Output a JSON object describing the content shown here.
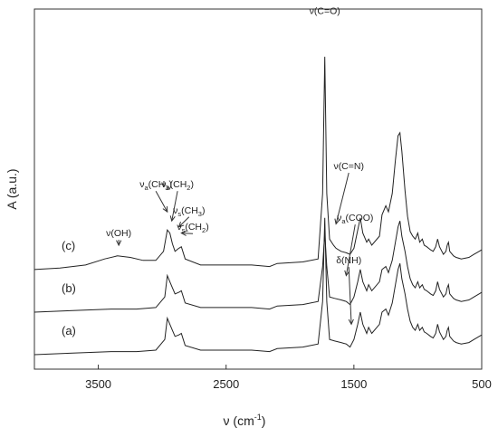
{
  "chart_data": {
    "type": "line",
    "title": "",
    "xlabel": "ν (cm",
    "xlabel_sup": "-1",
    "xlabel_close": ")",
    "ylabel": "A (a.u.)",
    "xlim": [
      4000,
      500
    ],
    "x_reversed": true,
    "y_ticks_shown": false,
    "grid": false,
    "legend": "none",
    "xticks": [
      3500,
      2500,
      1500,
      500
    ],
    "xtick_labels": [
      "3500",
      "2500",
      "1500",
      "500"
    ],
    "series": [
      {
        "label": "(a)",
        "offset": 0.0,
        "points": [
          [
            4000,
            0.1
          ],
          [
            3700,
            0.11
          ],
          [
            3400,
            0.12
          ],
          [
            3200,
            0.12
          ],
          [
            3050,
            0.13
          ],
          [
            2980,
            0.2
          ],
          [
            2960,
            0.34
          ],
          [
            2940,
            0.3
          ],
          [
            2920,
            0.26
          ],
          [
            2900,
            0.22
          ],
          [
            2870,
            0.23
          ],
          [
            2850,
            0.24
          ],
          [
            2820,
            0.16
          ],
          [
            2700,
            0.13
          ],
          [
            2500,
            0.13
          ],
          [
            2300,
            0.13
          ],
          [
            2160,
            0.12
          ],
          [
            2100,
            0.14
          ],
          [
            1900,
            0.15
          ],
          [
            1780,
            0.17
          ],
          [
            1745,
            0.45
          ],
          [
            1728,
            1.0
          ],
          [
            1712,
            0.45
          ],
          [
            1690,
            0.2
          ],
          [
            1650,
            0.19
          ],
          [
            1600,
            0.18
          ],
          [
            1560,
            0.17
          ],
          [
            1530,
            0.15
          ],
          [
            1500,
            0.2
          ],
          [
            1470,
            0.3
          ],
          [
            1450,
            0.38
          ],
          [
            1430,
            0.3
          ],
          [
            1400,
            0.24
          ],
          [
            1385,
            0.28
          ],
          [
            1360,
            0.24
          ],
          [
            1300,
            0.3
          ],
          [
            1280,
            0.38
          ],
          [
            1250,
            0.4
          ],
          [
            1230,
            0.36
          ],
          [
            1200,
            0.44
          ],
          [
            1175,
            0.56
          ],
          [
            1155,
            0.66
          ],
          [
            1140,
            0.7
          ],
          [
            1125,
            0.6
          ],
          [
            1100,
            0.5
          ],
          [
            1080,
            0.4
          ],
          [
            1060,
            0.32
          ],
          [
            1040,
            0.28
          ],
          [
            1020,
            0.26
          ],
          [
            1000,
            0.3
          ],
          [
            985,
            0.26
          ],
          [
            965,
            0.28
          ],
          [
            950,
            0.25
          ],
          [
            930,
            0.24
          ],
          [
            900,
            0.22
          ],
          [
            880,
            0.21
          ],
          [
            860,
            0.24
          ],
          [
            845,
            0.3
          ],
          [
            830,
            0.25
          ],
          [
            800,
            0.2
          ],
          [
            780,
            0.22
          ],
          [
            770,
            0.26
          ],
          [
            760,
            0.28
          ],
          [
            750,
            0.22
          ],
          [
            720,
            0.19
          ],
          [
            700,
            0.18
          ],
          [
            660,
            0.17
          ],
          [
            600,
            0.18
          ],
          [
            560,
            0.2
          ],
          [
            520,
            0.22
          ],
          [
            500,
            0.23
          ]
        ]
      },
      {
        "label": "(b)",
        "offset": 0.28,
        "points": [
          [
            4000,
            0.1
          ],
          [
            3700,
            0.11
          ],
          [
            3400,
            0.12
          ],
          [
            3200,
            0.12
          ],
          [
            3050,
            0.13
          ],
          [
            2980,
            0.2
          ],
          [
            2960,
            0.34
          ],
          [
            2940,
            0.3
          ],
          [
            2920,
            0.26
          ],
          [
            2900,
            0.22
          ],
          [
            2870,
            0.23
          ],
          [
            2850,
            0.24
          ],
          [
            2820,
            0.16
          ],
          [
            2700,
            0.13
          ],
          [
            2500,
            0.13
          ],
          [
            2300,
            0.13
          ],
          [
            2160,
            0.12
          ],
          [
            2100,
            0.14
          ],
          [
            1900,
            0.15
          ],
          [
            1780,
            0.17
          ],
          [
            1745,
            0.4
          ],
          [
            1728,
            0.62
          ],
          [
            1712,
            0.4
          ],
          [
            1690,
            0.2
          ],
          [
            1650,
            0.19
          ],
          [
            1600,
            0.18
          ],
          [
            1560,
            0.17
          ],
          [
            1530,
            0.15
          ],
          [
            1500,
            0.2
          ],
          [
            1470,
            0.3
          ],
          [
            1450,
            0.38
          ],
          [
            1430,
            0.3
          ],
          [
            1400,
            0.24
          ],
          [
            1385,
            0.28
          ],
          [
            1360,
            0.24
          ],
          [
            1300,
            0.3
          ],
          [
            1280,
            0.38
          ],
          [
            1250,
            0.4
          ],
          [
            1230,
            0.36
          ],
          [
            1200,
            0.44
          ],
          [
            1175,
            0.56
          ],
          [
            1155,
            0.66
          ],
          [
            1140,
            0.7
          ],
          [
            1125,
            0.6
          ],
          [
            1100,
            0.5
          ],
          [
            1080,
            0.4
          ],
          [
            1060,
            0.32
          ],
          [
            1040,
            0.28
          ],
          [
            1020,
            0.26
          ],
          [
            1000,
            0.3
          ],
          [
            985,
            0.26
          ],
          [
            965,
            0.28
          ],
          [
            950,
            0.25
          ],
          [
            930,
            0.24
          ],
          [
            900,
            0.22
          ],
          [
            880,
            0.21
          ],
          [
            860,
            0.24
          ],
          [
            845,
            0.3
          ],
          [
            830,
            0.25
          ],
          [
            800,
            0.2
          ],
          [
            780,
            0.22
          ],
          [
            770,
            0.26
          ],
          [
            760,
            0.28
          ],
          [
            750,
            0.22
          ],
          [
            720,
            0.19
          ],
          [
            700,
            0.18
          ],
          [
            660,
            0.17
          ],
          [
            600,
            0.18
          ],
          [
            560,
            0.2
          ],
          [
            520,
            0.22
          ],
          [
            500,
            0.23
          ]
        ]
      },
      {
        "label": "(c)",
        "offset": 0.56,
        "points": [
          [
            4000,
            0.1
          ],
          [
            3800,
            0.11
          ],
          [
            3600,
            0.13
          ],
          [
            3450,
            0.17
          ],
          [
            3350,
            0.19
          ],
          [
            3250,
            0.18
          ],
          [
            3150,
            0.16
          ],
          [
            3050,
            0.16
          ],
          [
            2990,
            0.22
          ],
          [
            2960,
            0.36
          ],
          [
            2940,
            0.34
          ],
          [
            2920,
            0.27
          ],
          [
            2900,
            0.22
          ],
          [
            2870,
            0.24
          ],
          [
            2850,
            0.25
          ],
          [
            2820,
            0.17
          ],
          [
            2700,
            0.13
          ],
          [
            2500,
            0.13
          ],
          [
            2300,
            0.13
          ],
          [
            2160,
            0.12
          ],
          [
            2100,
            0.14
          ],
          [
            1900,
            0.15
          ],
          [
            1780,
            0.17
          ],
          [
            1745,
            0.6
          ],
          [
            1728,
            1.5
          ],
          [
            1712,
            0.6
          ],
          [
            1690,
            0.3
          ],
          [
            1660,
            0.26
          ],
          [
            1640,
            0.24
          ],
          [
            1600,
            0.22
          ],
          [
            1560,
            0.21
          ],
          [
            1530,
            0.2
          ],
          [
            1500,
            0.24
          ],
          [
            1470,
            0.36
          ],
          [
            1450,
            0.44
          ],
          [
            1430,
            0.34
          ],
          [
            1400,
            0.28
          ],
          [
            1385,
            0.3
          ],
          [
            1360,
            0.26
          ],
          [
            1300,
            0.32
          ],
          [
            1280,
            0.46
          ],
          [
            1250,
            0.52
          ],
          [
            1230,
            0.48
          ],
          [
            1200,
            0.6
          ],
          [
            1175,
            0.82
          ],
          [
            1155,
            0.98
          ],
          [
            1140,
            1.0
          ],
          [
            1125,
            0.88
          ],
          [
            1100,
            0.62
          ],
          [
            1080,
            0.45
          ],
          [
            1060,
            0.35
          ],
          [
            1040,
            0.32
          ],
          [
            1020,
            0.3
          ],
          [
            1000,
            0.34
          ],
          [
            985,
            0.28
          ],
          [
            965,
            0.3
          ],
          [
            950,
            0.26
          ],
          [
            930,
            0.25
          ],
          [
            900,
            0.23
          ],
          [
            880,
            0.22
          ],
          [
            860,
            0.25
          ],
          [
            845,
            0.3
          ],
          [
            830,
            0.25
          ],
          [
            800,
            0.2
          ],
          [
            780,
            0.22
          ],
          [
            770,
            0.26
          ],
          [
            760,
            0.28
          ],
          [
            750,
            0.22
          ],
          [
            720,
            0.19
          ],
          [
            700,
            0.18
          ],
          [
            660,
            0.17
          ],
          [
            600,
            0.18
          ],
          [
            560,
            0.2
          ],
          [
            520,
            0.22
          ],
          [
            500,
            0.23
          ]
        ]
      }
    ],
    "annotations": [
      {
        "id": "voh",
        "main": "ν(OH)",
        "sub": "",
        "tail": "",
        "x_cm": 3340,
        "y": 0.78,
        "arrow_to_x": 3340,
        "arrow_to_y": 0.72
      },
      {
        "id": "vach3",
        "main": "ν",
        "sub": "a",
        "tail": "(CH",
        "sub2": "3",
        "close": ")",
        "x_cm": 3050,
        "y": 1.1,
        "arrow_to_x": 2960,
        "arrow_to_y": 0.94
      },
      {
        "id": "vach2",
        "main": "ν",
        "sub": "a",
        "tail": "(CH",
        "sub2": "2",
        "close": ")",
        "x_cm": 2880,
        "y": 1.1,
        "arrow_to_x": 2925,
        "arrow_to_y": 0.88
      },
      {
        "id": "vsch3",
        "main": "ν",
        "sub": "s",
        "tail": "(CH",
        "sub2": "3",
        "close": ")",
        "x_cm": 2790,
        "y": 0.93,
        "arrow_to_x": 2870,
        "arrow_to_y": 0.84
      },
      {
        "id": "vsch2",
        "main": "ν",
        "sub": "s",
        "tail": "(CH",
        "sub2": "2",
        "close": ")",
        "x_cm": 2760,
        "y": 0.82,
        "arrow_to_x": 2850,
        "arrow_to_y": 0.8
      },
      {
        "id": "vco",
        "main": "ν(C=O)",
        "sub": "",
        "tail": "",
        "x_cm": 1728,
        "y": 2.24,
        "arrow_to_x": null,
        "arrow_to_y": null
      },
      {
        "id": "vcn",
        "main": "ν(C=N)",
        "sub": "",
        "tail": "",
        "x_cm": 1540,
        "y": 1.22,
        "arrow_to_x": 1640,
        "arrow_to_y": 0.86
      },
      {
        "id": "vacoo",
        "main": "ν",
        "sub": "a",
        "tail": "(COO)",
        "x_cm": 1490,
        "y": 0.88,
        "arrow_to_x": 1560,
        "arrow_to_y": 0.52
      },
      {
        "id": "dnh",
        "main": "δ(NH)",
        "sub": "",
        "tail": "",
        "x_cm": 1540,
        "y": 0.6,
        "arrow_to_x": 1520,
        "arrow_to_y": 0.2
      }
    ]
  }
}
